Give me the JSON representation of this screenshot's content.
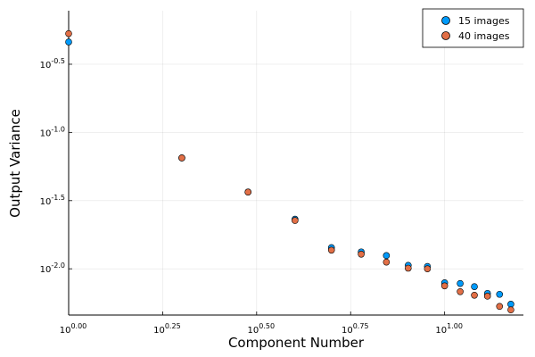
{
  "chart_data": {
    "type": "scatter",
    "title": "",
    "xlabel": "Component Number",
    "ylabel": "Output Variance",
    "x_scale": "log10",
    "y_scale": "log10",
    "xlim": [
      1,
      16.2
    ],
    "ylim": [
      0.00458,
      0.78
    ],
    "x_ticks": [
      {
        "value": 1,
        "base": "10",
        "exp": "0.00"
      },
      {
        "value": 1.778,
        "base": "10",
        "exp": "0.25"
      },
      {
        "value": 3.162,
        "base": "10",
        "exp": "0.50"
      },
      {
        "value": 5.623,
        "base": "10",
        "exp": "0.75"
      },
      {
        "value": 10,
        "base": "10",
        "exp": "1.00"
      }
    ],
    "y_ticks": [
      {
        "value": 0.316,
        "base": "10",
        "exp": "-0.5"
      },
      {
        "value": 0.1,
        "base": "10",
        "exp": "-1.0"
      },
      {
        "value": 0.0316,
        "base": "10",
        "exp": "-1.5"
      },
      {
        "value": 0.01,
        "base": "10",
        "exp": "-2.0"
      }
    ],
    "grid": true,
    "legend_position": "top-right",
    "series": [
      {
        "name": "15 images",
        "color": "#009AFA",
        "x": [
          1,
          2,
          3,
          4,
          5,
          6,
          7,
          8,
          9,
          10,
          11,
          12,
          13,
          14,
          15
        ],
        "y": [
          0.46,
          0.065,
          0.0365,
          0.0231,
          0.0143,
          0.0133,
          0.0125,
          0.0106,
          0.0104,
          0.0079,
          0.0078,
          0.0074,
          0.0066,
          0.0065,
          0.0055
        ]
      },
      {
        "name": "40 images",
        "color": "#E26F46",
        "x": [
          1,
          2,
          3,
          4,
          5,
          6,
          7,
          8,
          9,
          10,
          11,
          12,
          13,
          14,
          15
        ],
        "y": [
          0.53,
          0.065,
          0.0365,
          0.0226,
          0.0137,
          0.0128,
          0.0112,
          0.0101,
          0.01,
          0.0075,
          0.0068,
          0.0064,
          0.0063,
          0.0053,
          0.005
        ]
      }
    ]
  }
}
